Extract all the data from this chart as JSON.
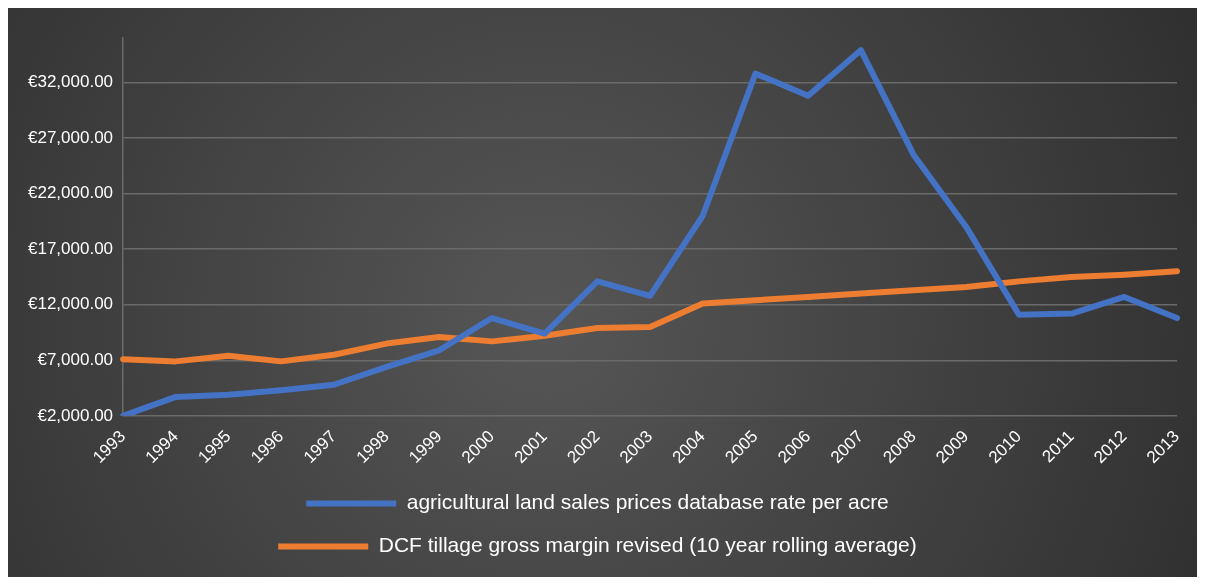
{
  "chart_data": {
    "type": "line",
    "categories": [
      "1993",
      "1994",
      "1995",
      "1996",
      "1997",
      "1998",
      "1999",
      "2000",
      "2001",
      "2002",
      "2003",
      "2004",
      "2005",
      "2006",
      "2007",
      "2008",
      "2009",
      "2010",
      "2011",
      "2012",
      "2013"
    ],
    "series": [
      {
        "name": "agricultural land sales prices database rate per acre",
        "color": "#4472c4",
        "values": [
          2000,
          3700,
          3900,
          4300,
          4800,
          6400,
          7900,
          10800,
          9400,
          14100,
          12800,
          20000,
          32800,
          30800,
          34900,
          25500,
          19000,
          11100,
          11200,
          12700,
          10800
        ]
      },
      {
        "name": "DCF tillage gross margin revised (10 year rolling average)",
        "color": "#ed7d31",
        "values": [
          7100,
          6900,
          7400,
          6900,
          7500,
          8500,
          9100,
          8700,
          9200,
          9900,
          10000,
          12100,
          12400,
          12700,
          13000,
          13300,
          13600,
          14100,
          14500,
          14700,
          15000
        ]
      }
    ],
    "ylim": [
      2000,
      36000
    ],
    "yticks": [
      {
        "value": 2000,
        "label": "€2,000.00"
      },
      {
        "value": 7000,
        "label": "€7,000.00"
      },
      {
        "value": 12000,
        "label": "€12,000.00"
      },
      {
        "value": 17000,
        "label": "€17,000.00"
      },
      {
        "value": 22000,
        "label": "€22,000.00"
      },
      {
        "value": 27000,
        "label": "€27,000.00"
      },
      {
        "value": 32000,
        "label": "€32,000.00"
      }
    ],
    "grid": "y",
    "legend": "bottom",
    "marker": "none",
    "line_style": "solid"
  }
}
